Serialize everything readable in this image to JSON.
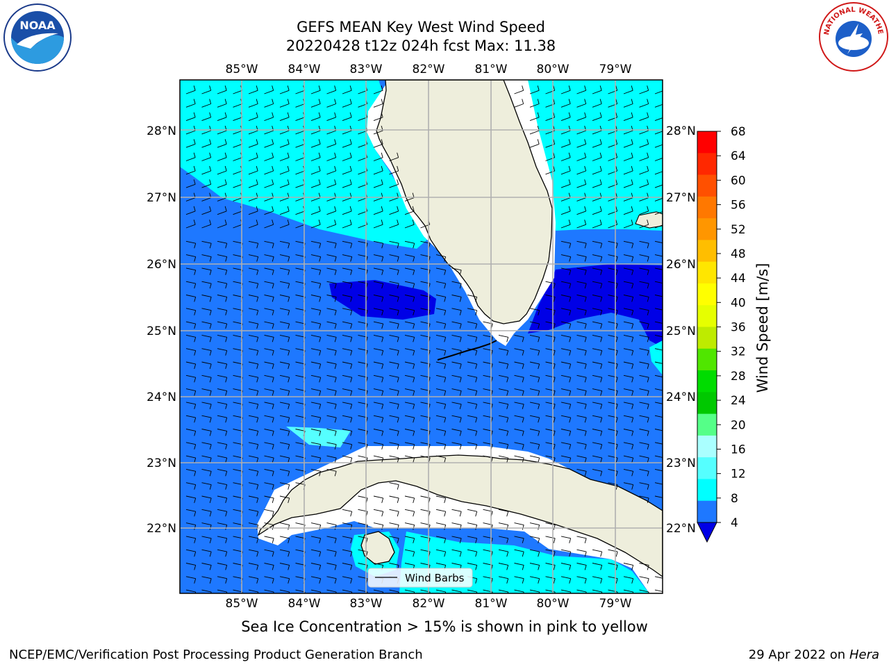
{
  "header": {
    "title_line1": "GEFS MEAN Key West Wind Speed",
    "title_line2": "20220428 t12z 024h fcst   Max: 11.38"
  },
  "map": {
    "lon_labels": [
      "85°W",
      "84°W",
      "83°W",
      "82°W",
      "81°W",
      "80°W",
      "79°W"
    ],
    "lat_labels": [
      "28°N",
      "27°N",
      "26°N",
      "25°N",
      "24°N",
      "23°N",
      "22°N"
    ],
    "legend_label": "Wind Barbs",
    "colors": {
      "ocean_8_12": "#00ffff",
      "ocean_4_8": "#1e78ff",
      "ocean_lt4": "#0000e6",
      "ocean_12_16": "#55ffff",
      "land": "#eeeedc",
      "grid": "#b0b0b0"
    }
  },
  "colorbar": {
    "title": "Wind Speed [m/s]",
    "ticks": [
      "68",
      "64",
      "60",
      "56",
      "52",
      "48",
      "44",
      "40",
      "36",
      "32",
      "28",
      "24",
      "20",
      "16",
      "12",
      "8",
      "4"
    ],
    "colors": [
      "#ff0000",
      "#ff2800",
      "#ff5000",
      "#ff7800",
      "#ff9600",
      "#ffbe00",
      "#ffe600",
      "#ffff00",
      "#e6ff00",
      "#beeb00",
      "#50e600",
      "#00dc00",
      "#00c800",
      "#55ff88",
      "#aaffff",
      "#55ffff",
      "#00ffff",
      "#1e78ff"
    ],
    "under_color": "#0000e6"
  },
  "logos": {
    "left": "NOAA",
    "right_text": "NATIONAL WEATHER SERVICE"
  },
  "caption": "Sea Ice Concentration > 15% is shown in pink to yellow",
  "footer": {
    "left": "NCEP/EMC/Verification Post Processing Product Generation Branch",
    "right_date": "29 Apr 2022 on",
    "right_host": "Hera"
  }
}
